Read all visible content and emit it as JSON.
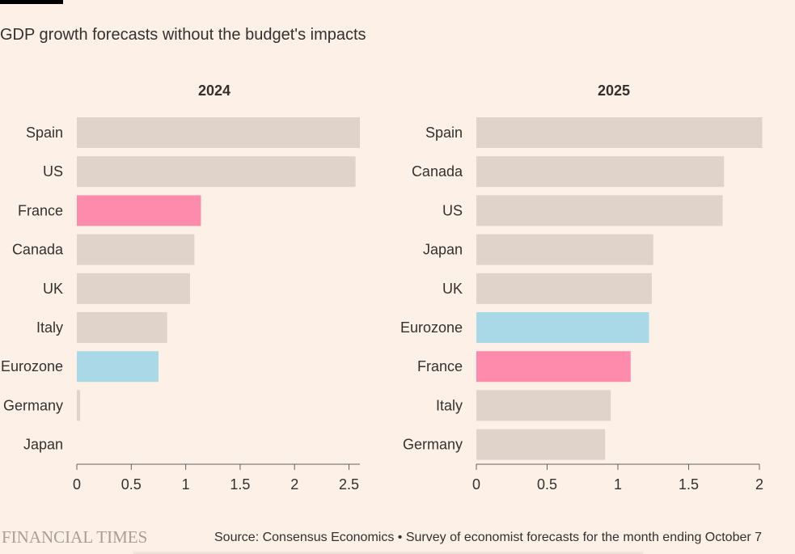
{
  "title": "GDP growth forecasts without the budget's impacts",
  "footer": {
    "logo": "FINANCIAL TIMES",
    "source": "Source: Consensus Economics • Survey of economist forecasts for the month ending October 7"
  },
  "colors": {
    "background": "#fdf1e7",
    "default_bar": "#e0d3ca",
    "france": "#ff8bac",
    "eurozone": "#a9d8e6",
    "axis": "#66605c",
    "text": "#33302e"
  },
  "chart_data": [
    {
      "type": "bar",
      "orientation": "horizontal",
      "title": "2024",
      "categories": [
        "Spain",
        "US",
        "France",
        "Canada",
        "UK",
        "Italy",
        "Eurozone",
        "Germany",
        "Japan"
      ],
      "values": [
        2.6,
        2.56,
        1.14,
        1.08,
        1.04,
        0.83,
        0.75,
        0.03,
        0.0
      ],
      "highlight": {
        "France": "#ff8bac",
        "Eurozone": "#a9d8e6"
      },
      "xlim": [
        0,
        2.6
      ],
      "xticks": [
        0,
        0.5,
        1,
        1.5,
        2,
        2.5
      ],
      "xtick_labels": [
        "0",
        "0.5",
        "1",
        "1.5",
        "2",
        "2.5"
      ],
      "xlabel": "",
      "ylabel": "",
      "grid": false
    },
    {
      "type": "bar",
      "orientation": "horizontal",
      "title": "2025",
      "categories": [
        "Spain",
        "Canada",
        "US",
        "Japan",
        "UK",
        "Eurozone",
        "France",
        "Italy",
        "Germany"
      ],
      "values": [
        2.02,
        1.75,
        1.74,
        1.25,
        1.24,
        1.22,
        1.09,
        0.95,
        0.91
      ],
      "highlight": {
        "France": "#ff8bac",
        "Eurozone": "#a9d8e6"
      },
      "xlim": [
        0,
        2
      ],
      "xticks": [
        0,
        0.5,
        1,
        1.5,
        2
      ],
      "xtick_labels": [
        "0",
        "0.5",
        "1",
        "1.5",
        "2"
      ],
      "xlabel": "",
      "ylabel": "",
      "grid": false
    }
  ]
}
